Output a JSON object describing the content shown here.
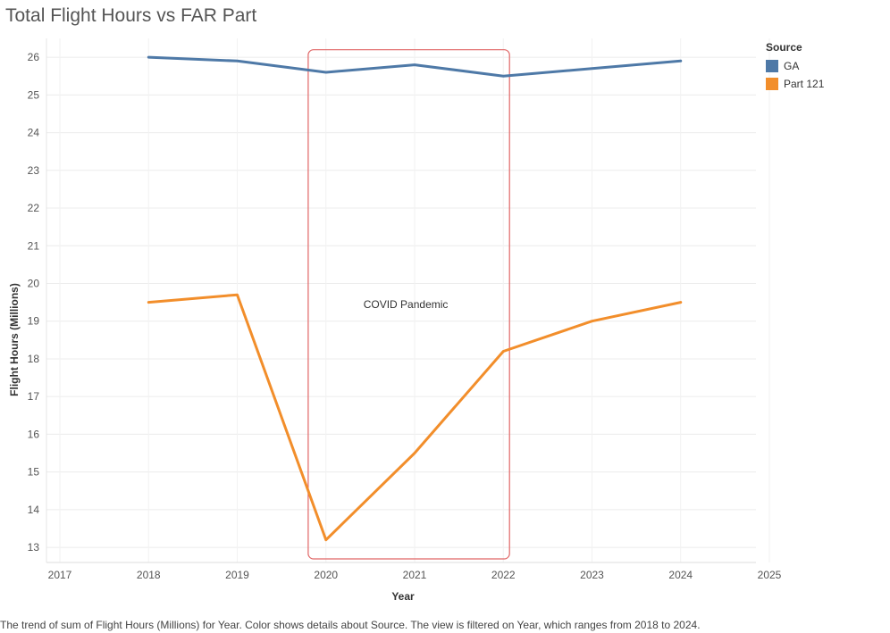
{
  "chart_data": {
    "type": "line",
    "title": "Total Flight Hours vs FAR Part",
    "xlabel": "Year",
    "ylabel": "Flight Hours (Millions)",
    "xlim": [
      2017,
      2025
    ],
    "ylim": [
      12.6,
      26.5
    ],
    "x_ticks": [
      2017,
      2018,
      2019,
      2020,
      2021,
      2022,
      2023,
      2024,
      2025
    ],
    "y_ticks": [
      13,
      14,
      15,
      16,
      17,
      18,
      19,
      20,
      21,
      22,
      23,
      24,
      25,
      26
    ],
    "grid": true,
    "legend": {
      "title": "Source",
      "placement": "top-right"
    },
    "x": [
      2018,
      2019,
      2020,
      2021,
      2022,
      2023,
      2024
    ],
    "series": [
      {
        "name": "GA",
        "color": "#4e79a7",
        "values": [
          26.0,
          25.9,
          25.6,
          25.8,
          25.5,
          25.7,
          25.9
        ]
      },
      {
        "name": "Part 121",
        "color": "#f28e2b",
        "values": [
          19.5,
          19.7,
          13.2,
          15.5,
          18.2,
          19.0,
          19.5
        ]
      }
    ],
    "annotation": {
      "text": "COVID Pandemic",
      "x_range": [
        2019.8,
        2022.07
      ],
      "y_range": [
        12.6,
        26.2
      ],
      "color": "#e06666"
    }
  },
  "caption": "The trend of sum of Flight Hours (Millions) for Year.  Color shows details about Source. The view is filtered on Year, which ranges from 2018 to 2024."
}
